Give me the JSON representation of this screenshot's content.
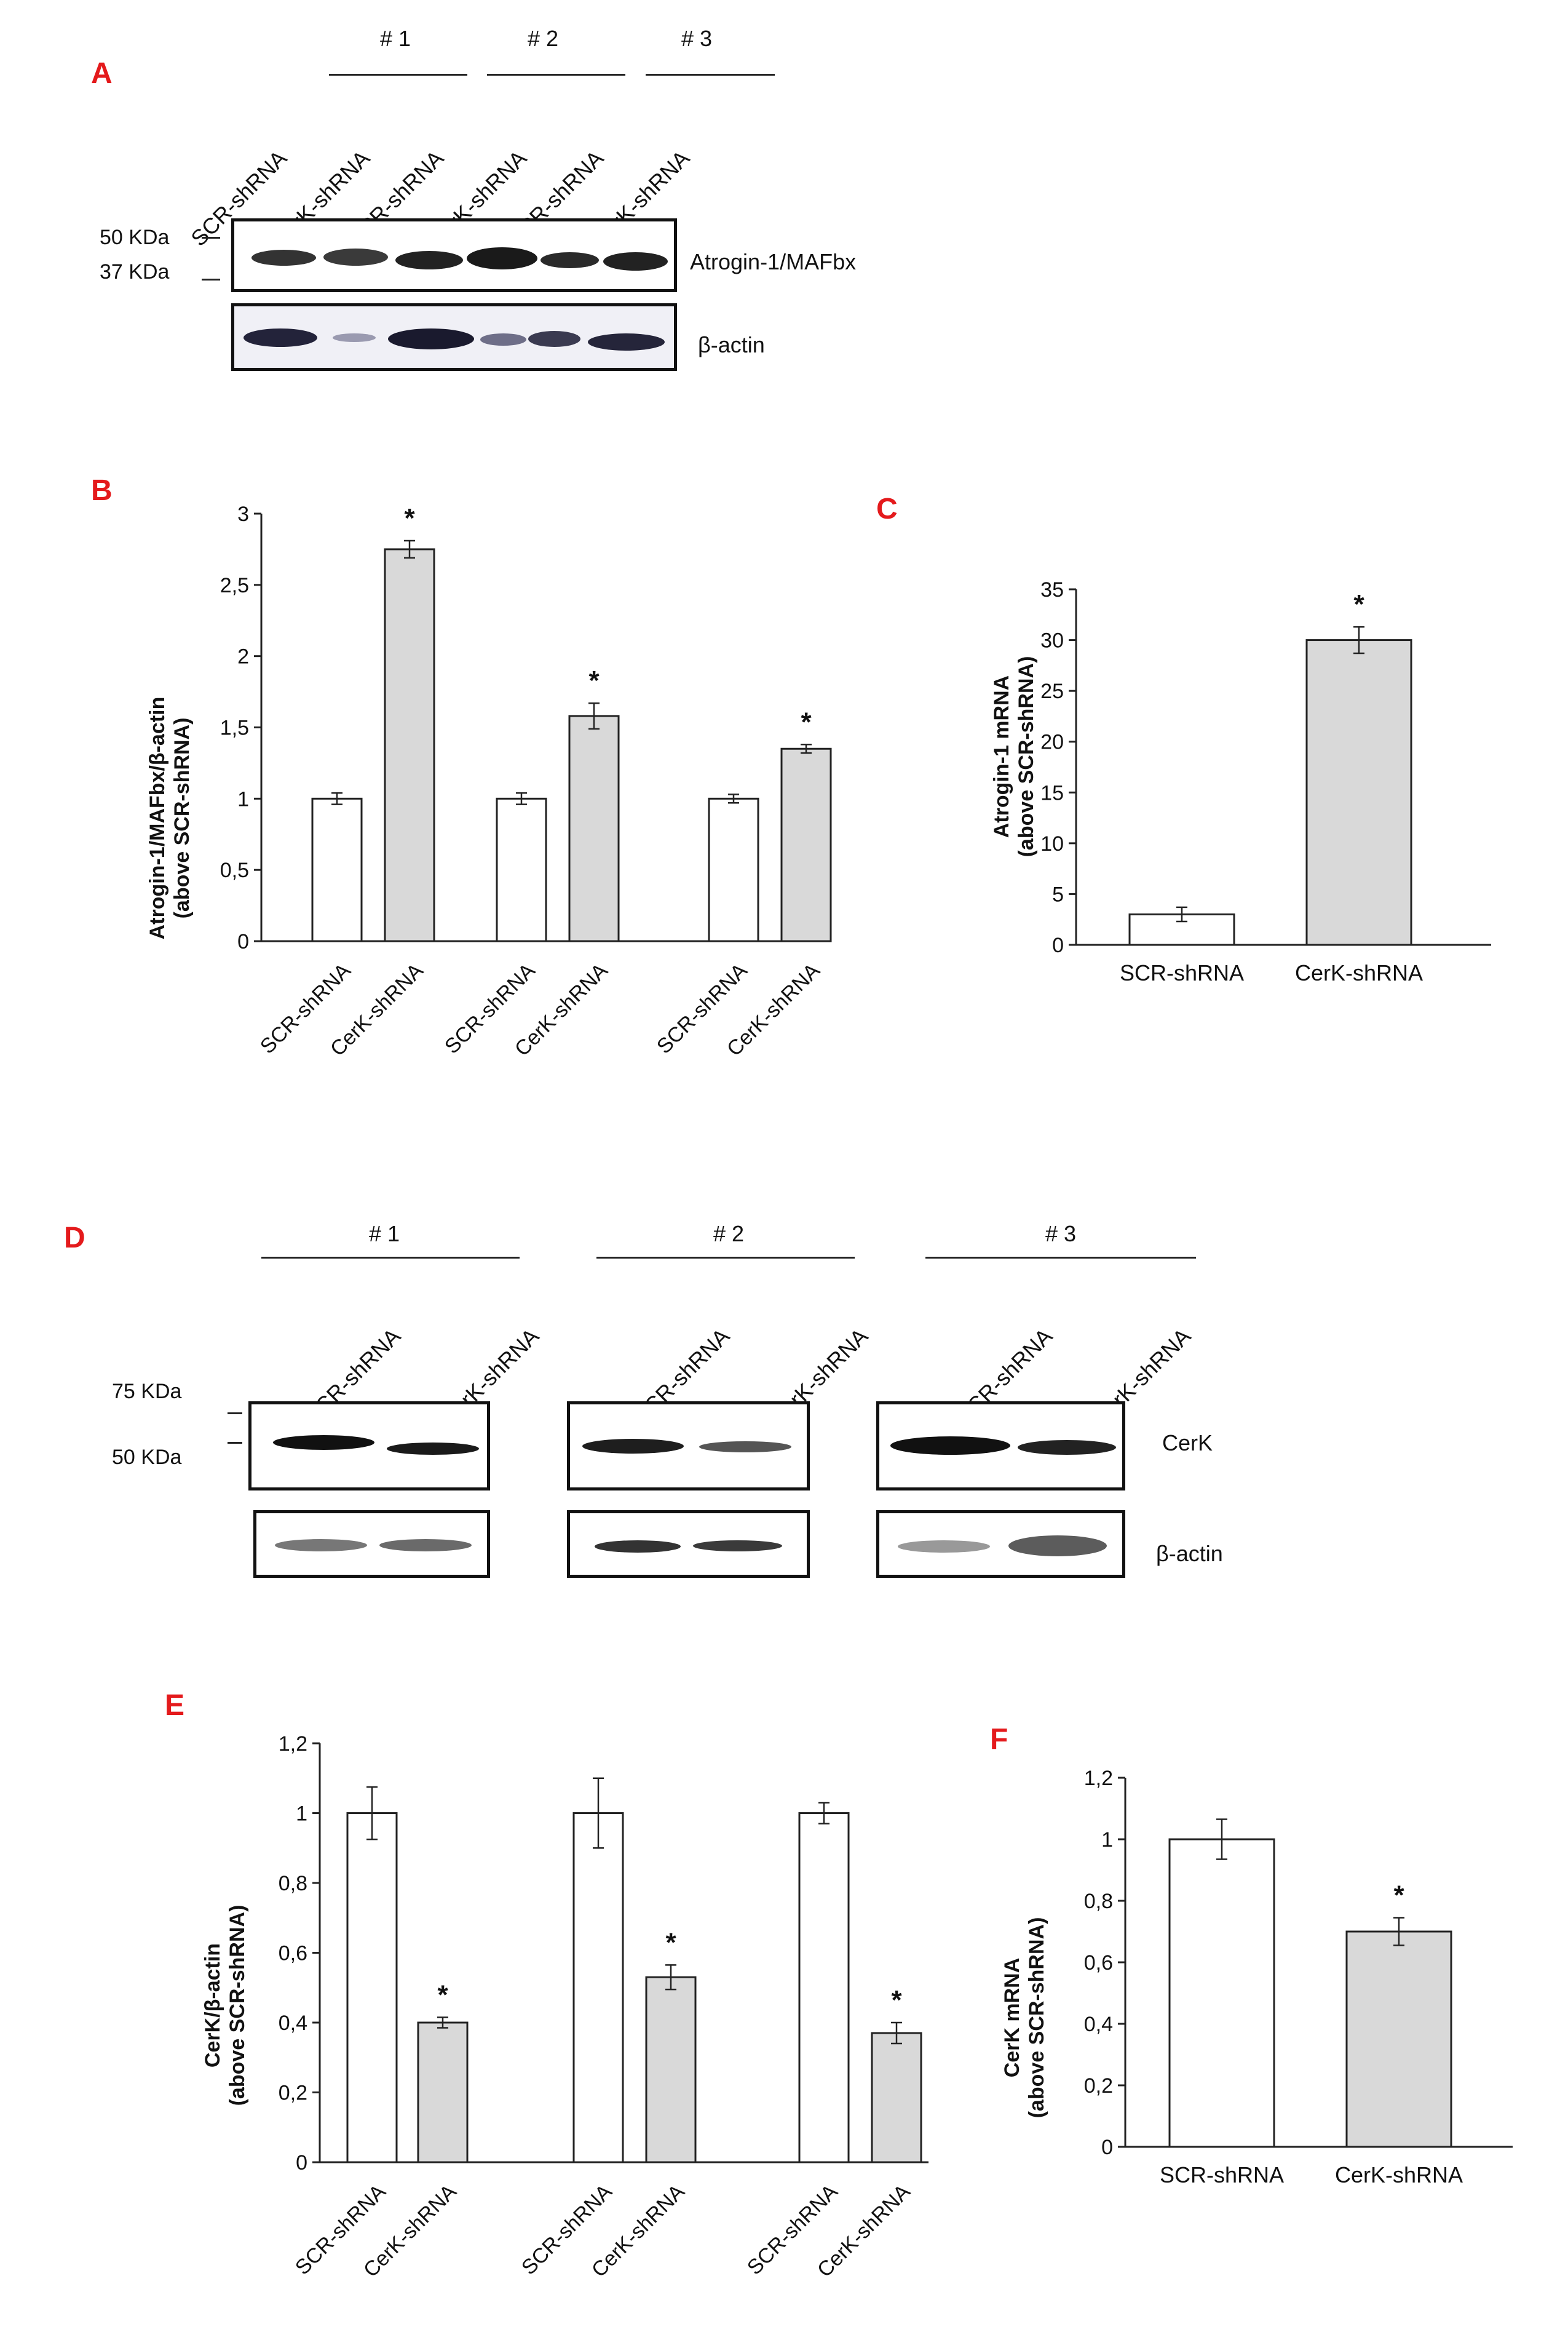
{
  "panels": {
    "a": "A",
    "b": "B",
    "c": "C",
    "d": "D",
    "e": "E",
    "f": "F"
  },
  "blot_a": {
    "groups": [
      "# 1",
      "# 2",
      "# 3"
    ],
    "lanes": [
      "SCR-shRNA",
      "CerK-shRNA",
      "SCR-shRNA",
      "CerK-shRNA",
      "SCR-shRNA",
      "CerK-shRNA"
    ],
    "mw_top": "50 KDa",
    "mw_bottom": "37 KDa",
    "target": "Atrogin-1/MAFbx",
    "loading": "β-actin"
  },
  "blot_d": {
    "groups": [
      "# 1",
      "# 2",
      "# 3"
    ],
    "lanes": [
      "SCR-shRNA",
      "CerK-shRNA",
      "SCR-shRNA",
      "CerK-shRNA",
      "SCR-shRNA",
      "CerK-shRNA"
    ],
    "mw_top": "75 KDa",
    "mw_bottom": "50 KDa",
    "target": "CerK",
    "loading": "β-actin"
  },
  "colors": {
    "panel_letter": "#e41a1c",
    "bar_control": "#ffffff",
    "bar_knockdown": "#d9d9d9"
  },
  "chart_data": [
    {
      "id": "B",
      "type": "bar",
      "ylabel_line1": "Atrogin-1/MAFbx/β-actin",
      "ylabel_line2": "(above SCR-shRNA)",
      "categories": [
        "SCR-shRNA",
        "CerK-shRNA",
        "SCR-shRNA",
        "CerK-shRNA",
        "SCR-shRNA",
        "CerK-shRNA"
      ],
      "values": [
        1.0,
        2.75,
        1.0,
        1.58,
        1.0,
        1.35
      ],
      "errors": [
        0.04,
        0.06,
        0.04,
        0.09,
        0.03,
        0.03
      ],
      "significance": [
        "",
        "*",
        "",
        "*",
        "",
        "*"
      ],
      "ylim": [
        0,
        3
      ],
      "ticks": [
        "0",
        "0,5",
        "1",
        "1,5",
        "2",
        "2,5",
        "3"
      ],
      "tick_values": [
        0,
        0.5,
        1,
        1.5,
        2,
        2.5,
        3
      ]
    },
    {
      "id": "C",
      "type": "bar",
      "ylabel_line1": "Atrogin-1 mRNA",
      "ylabel_line2": "(above SCR-shRNA)",
      "categories": [
        "SCR-shRNA",
        "CerK-shRNA"
      ],
      "values": [
        3.0,
        30.0
      ],
      "errors": [
        0.7,
        1.3
      ],
      "significance": [
        "",
        "*"
      ],
      "ylim": [
        0,
        35
      ],
      "ticks": [
        "0",
        "5",
        "10",
        "15",
        "20",
        "25",
        "30",
        "35"
      ],
      "tick_values": [
        0,
        5,
        10,
        15,
        20,
        25,
        30,
        35
      ]
    },
    {
      "id": "E",
      "type": "bar",
      "ylabel_line1": "CerK/β-actin",
      "ylabel_line2": "(above SCR-shRNA)",
      "categories": [
        "SCR-shRNA",
        "CerK-shRNA",
        "SCR-shRNA",
        "CerK-shRNA",
        "SCR-shRNA",
        "CerK-shRNA"
      ],
      "values": [
        1.0,
        0.4,
        1.0,
        0.53,
        1.0,
        0.37
      ],
      "errors": [
        0.075,
        0.015,
        0.1,
        0.035,
        0.03,
        0.03
      ],
      "significance": [
        "",
        "*",
        "",
        "*",
        "",
        "*"
      ],
      "ylim": [
        0,
        1.2
      ],
      "ticks": [
        "0",
        "0,2",
        "0,4",
        "0,6",
        "0,8",
        "1",
        "1,2"
      ],
      "tick_values": [
        0,
        0.2,
        0.4,
        0.6,
        0.8,
        1.0,
        1.2
      ]
    },
    {
      "id": "F",
      "type": "bar",
      "ylabel_line1": "CerK mRNA",
      "ylabel_line2": "(above SCR-shRNA)",
      "categories": [
        "SCR-shRNA",
        "CerK-shRNA"
      ],
      "values": [
        1.0,
        0.7
      ],
      "errors": [
        0.065,
        0.045
      ],
      "significance": [
        "",
        "*"
      ],
      "ylim": [
        0,
        1.2
      ],
      "ticks": [
        "0",
        "0,2",
        "0,4",
        "0,6",
        "0,8",
        "1",
        "1,2"
      ],
      "tick_values": [
        0,
        0.2,
        0.4,
        0.6,
        0.8,
        1.0,
        1.2
      ]
    }
  ]
}
